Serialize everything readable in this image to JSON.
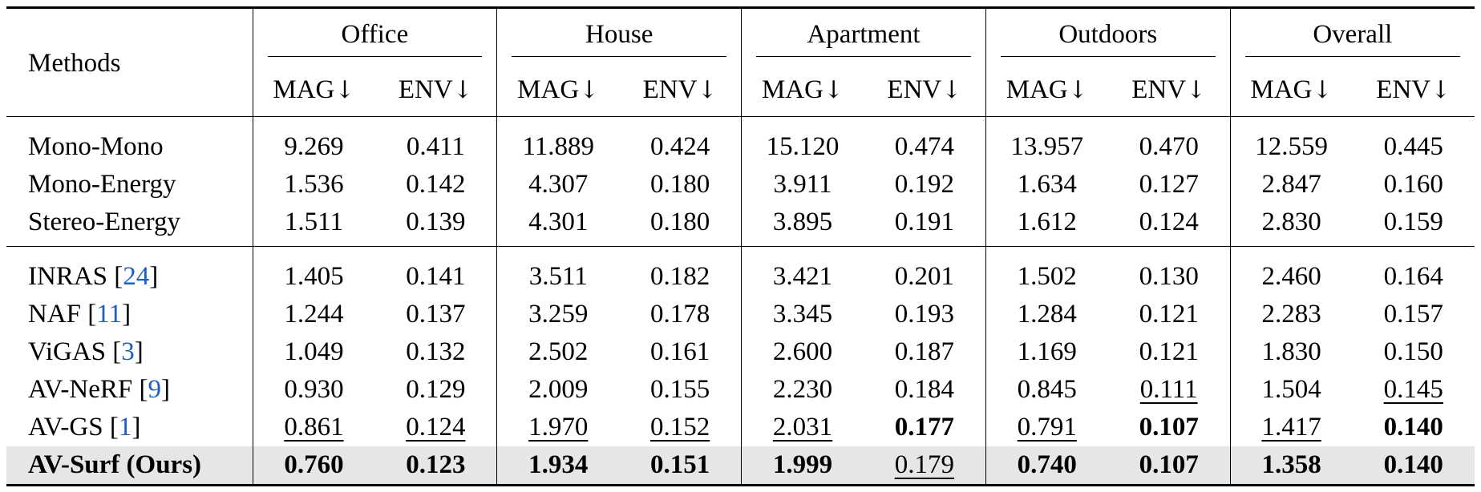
{
  "header": {
    "methods_label": "Methods",
    "groups": [
      "Office",
      "House",
      "Apartment",
      "Outdoors",
      "Overall"
    ],
    "metrics": [
      "MAG",
      "ENV"
    ],
    "arrow": "↓"
  },
  "baselines": [
    {
      "name": "Mono-Mono",
      "values": [
        "9.269",
        "0.411",
        "11.889",
        "0.424",
        "15.120",
        "0.474",
        "13.957",
        "0.470",
        "12.559",
        "0.445"
      ]
    },
    {
      "name": "Mono-Energy",
      "values": [
        "1.536",
        "0.142",
        "4.307",
        "0.180",
        "3.911",
        "0.192",
        "1.634",
        "0.127",
        "2.847",
        "0.160"
      ]
    },
    {
      "name": "Stereo-Energy",
      "values": [
        "1.511",
        "0.139",
        "4.301",
        "0.180",
        "3.895",
        "0.191",
        "1.612",
        "0.124",
        "2.830",
        "0.159"
      ]
    }
  ],
  "methods": [
    {
      "name": "INRAS",
      "ref": "24",
      "values": [
        "1.405",
        "0.141",
        "3.511",
        "0.182",
        "3.421",
        "0.201",
        "1.502",
        "0.130",
        "2.460",
        "0.164"
      ]
    },
    {
      "name": "NAF",
      "ref": "11",
      "values": [
        "1.244",
        "0.137",
        "3.259",
        "0.178",
        "3.345",
        "0.193",
        "1.284",
        "0.121",
        "2.283",
        "0.157"
      ]
    },
    {
      "name": "ViGAS",
      "ref": "3",
      "values": [
        "1.049",
        "0.132",
        "2.502",
        "0.161",
        "2.600",
        "0.187",
        "1.169",
        "0.121",
        "1.830",
        "0.150"
      ]
    },
    {
      "name": "AV-NeRF",
      "ref": "9",
      "values": [
        "0.930",
        "0.129",
        "2.009",
        "0.155",
        "2.230",
        "0.184",
        "0.845",
        "0.111",
        "1.504",
        "0.145"
      ]
    },
    {
      "name": "AV-GS",
      "ref": "1",
      "values": [
        "0.861",
        "0.124",
        "1.970",
        "0.152",
        "2.031",
        "0.177",
        "0.791",
        "0.107",
        "1.417",
        "0.140"
      ]
    }
  ],
  "ours": {
    "name": "AV-Surf (Ours)",
    "values": [
      "0.760",
      "0.123",
      "1.934",
      "0.151",
      "1.999",
      "0.179",
      "0.740",
      "0.107",
      "1.358",
      "0.140"
    ]
  }
}
